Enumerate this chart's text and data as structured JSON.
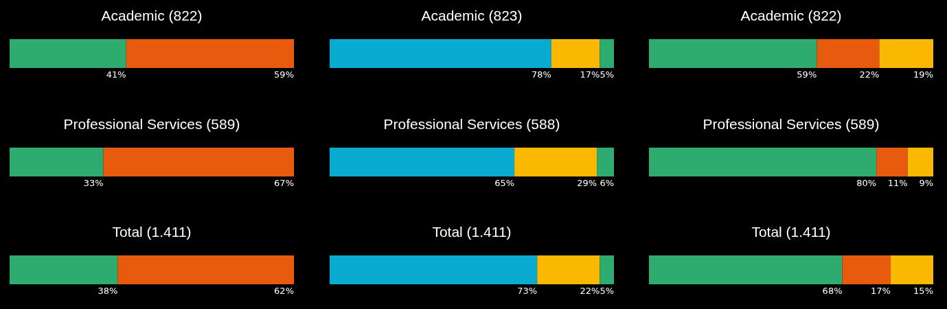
{
  "chart_data": [
    {
      "type": "bar",
      "orientation": "horizontal",
      "stacked": true,
      "title": "Academic (822)",
      "categories": [
        null
      ],
      "series": [
        {
          "color": "#2eac6f",
          "values": [
            41
          ],
          "value_labels": [
            "41%"
          ]
        },
        {
          "color": "#e85a0e",
          "values": [
            59
          ],
          "value_labels": [
            "59%"
          ]
        }
      ]
    },
    {
      "type": "bar",
      "orientation": "horizontal",
      "stacked": true,
      "title": "Academic (823)",
      "categories": [
        null
      ],
      "series": [
        {
          "color": "#0aabd0",
          "values": [
            78
          ],
          "value_labels": [
            "78%"
          ]
        },
        {
          "color": "#fbb800",
          "values": [
            17
          ],
          "value_labels": [
            "17%"
          ]
        },
        {
          "color": "#2eac6f",
          "values": [
            5
          ],
          "value_labels": [
            "5%"
          ]
        }
      ]
    },
    {
      "type": "bar",
      "orientation": "horizontal",
      "stacked": true,
      "title": "Academic (822)",
      "categories": [
        null
      ],
      "series": [
        {
          "color": "#2eac6f",
          "values": [
            59
          ],
          "value_labels": [
            "59%"
          ]
        },
        {
          "color": "#e85a0e",
          "values": [
            22
          ],
          "value_labels": [
            "22%"
          ]
        },
        {
          "color": "#fbb800",
          "values": [
            19
          ],
          "value_labels": [
            "19%"
          ]
        }
      ]
    },
    {
      "type": "bar",
      "orientation": "horizontal",
      "stacked": true,
      "title": "Professional Services (589)",
      "categories": [
        null
      ],
      "series": [
        {
          "color": "#2eac6f",
          "values": [
            33
          ],
          "value_labels": [
            "33%"
          ]
        },
        {
          "color": "#e85a0e",
          "values": [
            67
          ],
          "value_labels": [
            "67%"
          ]
        }
      ]
    },
    {
      "type": "bar",
      "orientation": "horizontal",
      "stacked": true,
      "title": "Professional Services (588)",
      "categories": [
        null
      ],
      "series": [
        {
          "color": "#0aabd0",
          "values": [
            65
          ],
          "value_labels": [
            "65%"
          ]
        },
        {
          "color": "#fbb800",
          "values": [
            29
          ],
          "value_labels": [
            "29%"
          ]
        },
        {
          "color": "#2eac6f",
          "values": [
            6
          ],
          "value_labels": [
            "6%"
          ]
        }
      ]
    },
    {
      "type": "bar",
      "orientation": "horizontal",
      "stacked": true,
      "title": "Professional Services (589)",
      "categories": [
        null
      ],
      "series": [
        {
          "color": "#2eac6f",
          "values": [
            80
          ],
          "value_labels": [
            "80%"
          ]
        },
        {
          "color": "#e85a0e",
          "values": [
            11
          ],
          "value_labels": [
            "11%"
          ]
        },
        {
          "color": "#fbb800",
          "values": [
            9
          ],
          "value_labels": [
            "9%"
          ]
        }
      ]
    },
    {
      "type": "bar",
      "orientation": "horizontal",
      "stacked": true,
      "title": "Total (1.411)",
      "categories": [
        null
      ],
      "series": [
        {
          "color": "#2eac6f",
          "values": [
            38
          ],
          "value_labels": [
            "38%"
          ]
        },
        {
          "color": "#e85a0e",
          "values": [
            62
          ],
          "value_labels": [
            "62%"
          ]
        }
      ]
    },
    {
      "type": "bar",
      "orientation": "horizontal",
      "stacked": true,
      "title": "Total (1.411)",
      "categories": [
        null
      ],
      "series": [
        {
          "color": "#0aabd0",
          "values": [
            73
          ],
          "value_labels": [
            "73%"
          ]
        },
        {
          "color": "#fbb800",
          "values": [
            22
          ],
          "value_labels": [
            "22%"
          ]
        },
        {
          "color": "#2eac6f",
          "values": [
            5
          ],
          "value_labels": [
            "5%"
          ]
        }
      ]
    },
    {
      "type": "bar",
      "orientation": "horizontal",
      "stacked": true,
      "title": "Total (1.411)",
      "categories": [
        null
      ],
      "series": [
        {
          "color": "#2eac6f",
          "values": [
            68
          ],
          "value_labels": [
            "68%"
          ]
        },
        {
          "color": "#e85a0e",
          "values": [
            17
          ],
          "value_labels": [
            "17%"
          ]
        },
        {
          "color": "#fbb800",
          "values": [
            15
          ],
          "value_labels": [
            "15%"
          ]
        }
      ]
    }
  ]
}
